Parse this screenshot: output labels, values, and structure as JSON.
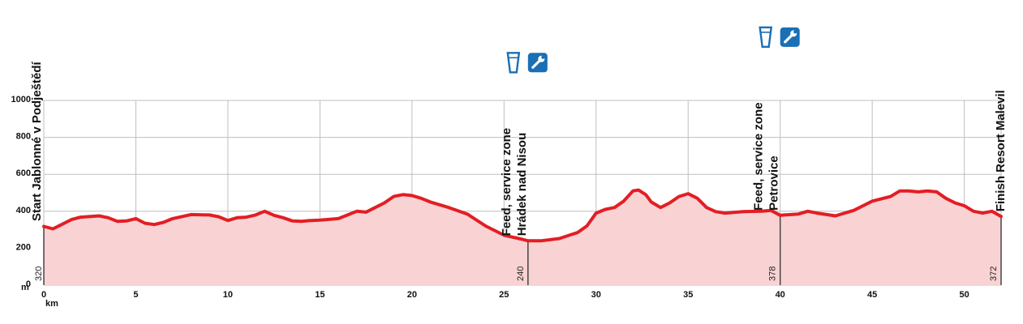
{
  "chart_data": {
    "type": "area",
    "x_unit": "km",
    "y_unit": "m",
    "xlim": [
      0,
      52
    ],
    "ylim": [
      0,
      1000
    ],
    "x_ticks": [
      0,
      5,
      10,
      15,
      20,
      25,
      30,
      35,
      40,
      45,
      50
    ],
    "y_ticks": [
      0,
      200,
      400,
      600,
      800,
      1000
    ],
    "grid": true,
    "colors": {
      "line": "#e31e24",
      "fill": "#f9d3d4",
      "grid": "#bfbfbf",
      "icon": "#1a6fb5"
    },
    "profile": [
      [
        0,
        318
      ],
      [
        0.5,
        305
      ],
      [
        1,
        330
      ],
      [
        1.5,
        355
      ],
      [
        2,
        368
      ],
      [
        3,
        375
      ],
      [
        3.5,
        365
      ],
      [
        4,
        345
      ],
      [
        4.5,
        348
      ],
      [
        5,
        360
      ],
      [
        5.5,
        335
      ],
      [
        6,
        328
      ],
      [
        6.5,
        340
      ],
      [
        7,
        360
      ],
      [
        8,
        382
      ],
      [
        9,
        380
      ],
      [
        9.5,
        370
      ],
      [
        10,
        350
      ],
      [
        10.5,
        365
      ],
      [
        11,
        368
      ],
      [
        11.5,
        380
      ],
      [
        12,
        400
      ],
      [
        12.5,
        378
      ],
      [
        13,
        365
      ],
      [
        13.5,
        348
      ],
      [
        14,
        345
      ],
      [
        14.5,
        350
      ],
      [
        15,
        352
      ],
      [
        16,
        360
      ],
      [
        16.5,
        380
      ],
      [
        17,
        400
      ],
      [
        17.5,
        395
      ],
      [
        18,
        420
      ],
      [
        18.5,
        445
      ],
      [
        19,
        480
      ],
      [
        19.5,
        490
      ],
      [
        20,
        485
      ],
      [
        20.5,
        470
      ],
      [
        21,
        450
      ],
      [
        22,
        420
      ],
      [
        23,
        385
      ],
      [
        24,
        320
      ],
      [
        25,
        270
      ],
      [
        26,
        248
      ],
      [
        26.3,
        240
      ],
      [
        27,
        240
      ],
      [
        28,
        252
      ],
      [
        29,
        285
      ],
      [
        29.5,
        320
      ],
      [
        30,
        390
      ],
      [
        30.5,
        410
      ],
      [
        31,
        420
      ],
      [
        31.5,
        455
      ],
      [
        32,
        510
      ],
      [
        32.3,
        515
      ],
      [
        32.7,
        490
      ],
      [
        33,
        450
      ],
      [
        33.5,
        420
      ],
      [
        34,
        445
      ],
      [
        34.5,
        480
      ],
      [
        35,
        495
      ],
      [
        35.5,
        470
      ],
      [
        36,
        420
      ],
      [
        36.5,
        398
      ],
      [
        37,
        390
      ],
      [
        38,
        398
      ],
      [
        39,
        400
      ],
      [
        39.5,
        405
      ],
      [
        40,
        378
      ],
      [
        41,
        385
      ],
      [
        41.5,
        400
      ],
      [
        42,
        390
      ],
      [
        43,
        375
      ],
      [
        44,
        405
      ],
      [
        45,
        455
      ],
      [
        46,
        480
      ],
      [
        46.5,
        510
      ],
      [
        47,
        510
      ],
      [
        47.5,
        505
      ],
      [
        48,
        510
      ],
      [
        48.5,
        505
      ],
      [
        49,
        470
      ],
      [
        49.5,
        445
      ],
      [
        50,
        430
      ],
      [
        50.5,
        400
      ],
      [
        51,
        390
      ],
      [
        51.5,
        400
      ],
      [
        52,
        372
      ]
    ],
    "points": [
      {
        "km": 0,
        "elevation": 320,
        "elevation_label": "320",
        "label": "Start Jablonné v Podještědí",
        "icons": []
      },
      {
        "km": 26.3,
        "elevation": 240,
        "elevation_label": "240",
        "label": "Feed, service zone Hrádek nad Nisou",
        "label_lines": [
          "Feed, service zone",
          "Hrádek nad Nisou"
        ],
        "icons": [
          "feed-cup-icon",
          "service-wrench-icon"
        ]
      },
      {
        "km": 40,
        "elevation": 378,
        "elevation_label": "378",
        "label": "Feed, service zone Petrovice",
        "label_lines": [
          "Feed, service zone",
          "Petrovice"
        ],
        "icons": [
          "feed-cup-icon",
          "service-wrench-icon"
        ]
      },
      {
        "km": 52,
        "elevation": 372,
        "elevation_label": "372",
        "label": "Finish Resort Malevil",
        "icons": []
      }
    ]
  }
}
